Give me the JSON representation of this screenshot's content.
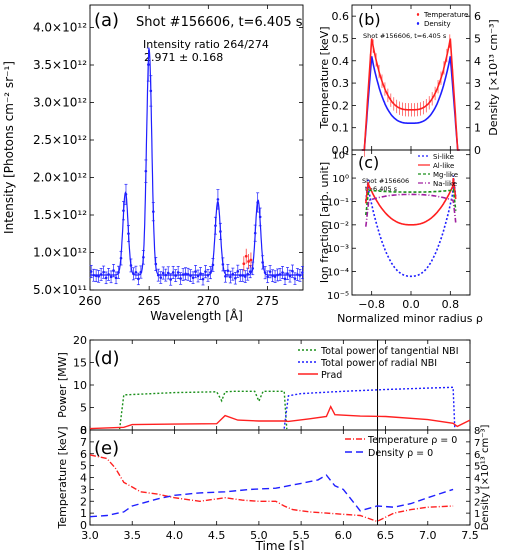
{
  "chart_data": [
    {
      "panel": "(a)",
      "type": "line",
      "title": "Shot #156606, t=6.405 s",
      "annotation": [
        "Intensity ratio 264/274",
        "2.971 ±     0.168"
      ],
      "xlabel": "Wavelength [Å]",
      "ylabel": "Intensity [Photons cm⁻² sr⁻¹]",
      "xlim": [
        260,
        278
      ],
      "ylim": [
        500000000000.0,
        4300000000000.0
      ],
      "xticks": [
        260,
        265,
        270,
        275
      ],
      "xtick_labels": [
        "260",
        "265",
        "270",
        "275"
      ],
      "yticks": [
        500000000000.0,
        1000000000000.0,
        1500000000000.0,
        2000000000000.0,
        2500000000000.0,
        3000000000000.0,
        3500000000000.0,
        4000000000000.0
      ],
      "ytick_labels": [
        "5.0×10¹¹",
        "1.0×10¹²",
        "1.5×10¹²",
        "2.0×10¹²",
        "2.5×10¹²",
        "3.0×10¹²",
        "3.5×10¹²",
        "4.0×10¹²"
      ],
      "peaks": [
        {
          "center": 263.0,
          "amp": 1100000000000.0,
          "width": 0.22
        },
        {
          "center": 265.0,
          "amp": 3000000000000.0,
          "width": 0.22
        },
        {
          "center": 270.8,
          "amp": 980000000000.0,
          "width": 0.22
        },
        {
          "center": 274.2,
          "amp": 1000000000000.0,
          "width": 0.22
        }
      ],
      "baseline": 700000000000.0,
      "series": [
        {
          "name": "",
          "color": "#1f1fff"
        },
        {
          "name": "",
          "color": "#ff2020",
          "x": [
            273.0,
            273.2,
            273.4,
            273.6
          ],
          "y": [
            850000000000.0,
            950000000000.0,
            880000000000.0,
            900000000000.0
          ]
        }
      ]
    },
    {
      "panel": "(b)",
      "type": "line",
      "title": "Shot #156606, t=6.405 s",
      "ylabel": "Temperature [keV]",
      "y2label": "Density [×10¹³ cm⁻³]",
      "xlim": [
        -1.2,
        1.2
      ],
      "ylim": [
        0,
        0.65
      ],
      "yticks": [
        0,
        0.1,
        0.2,
        0.3,
        0.4,
        0.5,
        0.6
      ],
      "ytick_labels": [
        "0.0",
        "0.1",
        "0.2",
        "0.3",
        "0.4",
        "0.5",
        "0.6"
      ],
      "y2lim": [
        0,
        6.5
      ],
      "y2ticks": [
        0,
        1,
        2,
        3,
        4,
        5,
        6
      ],
      "y2tick_labels": [
        "0",
        "1",
        "2",
        "3",
        "4",
        "5",
        "6"
      ],
      "legend": [
        "Temperature",
        "Density"
      ],
      "legend_placement": "top-right",
      "series": [
        {
          "name": "Temperature",
          "color": "#ff2020",
          "edge_value": 0.5,
          "core_value": 0.18
        },
        {
          "name": "Density",
          "color": "#1f1fff",
          "edge_value": 4.2,
          "core_value": 1.2
        }
      ]
    },
    {
      "panel": "(c)",
      "type": "line",
      "title": "Shot #156606\nt=6.405 s",
      "ylabel": "Ion fraction [arb. unit]",
      "xlabel": "Normalized minor radius ρ",
      "xlim": [
        -1.2,
        1.2
      ],
      "xticks": [
        -0.8,
        0.0,
        0.8
      ],
      "xtick_labels": [
        "−0.8",
        "0.0",
        "0.8"
      ],
      "ylim_log": [
        -5,
        1.2
      ],
      "yticks_exp": [
        1,
        0,
        -1,
        -2,
        -3,
        -4,
        -5
      ],
      "ytick_labels": [
        "10¹",
        "10⁰",
        "10⁻¹",
        "10⁻²",
        "10⁻³",
        "10⁻⁴",
        "10⁻⁵"
      ],
      "legend": [
        "Si-like",
        "Al-like",
        "Mg-like",
        "Na-like"
      ],
      "legend_placement": "top-right",
      "series": [
        {
          "name": "Si-like",
          "color": "#1f1fff",
          "dash": "2,2",
          "edge_log": 0.1,
          "core_log": -4.2
        },
        {
          "name": "Al-like",
          "color": "#ff2020",
          "dash": "",
          "edge_log": 0.0,
          "core_log": -2.0
        },
        {
          "name": "Mg-like",
          "color": "#1a8f1a",
          "dash": "3,2",
          "edge_log": -0.5,
          "core_log": -0.6
        },
        {
          "name": "Na-like",
          "color": "#a020a0",
          "dash": "5,2,1,2",
          "edge_log": -1.0,
          "core_log": -0.7
        }
      ]
    },
    {
      "panel": "(d)",
      "type": "line",
      "ylabel": "Power [MW]",
      "xlim": [
        3.0,
        7.5
      ],
      "ylim": [
        0,
        20
      ],
      "yticks": [
        0,
        5,
        10,
        15,
        20
      ],
      "ytick_labels": [
        "0",
        "5",
        "10",
        "15",
        "20"
      ],
      "vline_x": 6.405,
      "legend": [
        "Total power of tangential NBI",
        "Total power of radial NBI",
        "Prad"
      ],
      "legend_placement": "top-right",
      "series": [
        {
          "name": "Total power of tangential NBI",
          "color": "#1a8f1a",
          "x": [
            3.35,
            3.4,
            4.0,
            4.5,
            4.56,
            4.6,
            4.7,
            4.95,
            5.0,
            5.05,
            5.3,
            5.33
          ],
          "y": [
            0.2,
            7.8,
            8.3,
            8.5,
            6.5,
            8.5,
            8.6,
            8.6,
            6.4,
            8.6,
            8.6,
            0.2
          ]
        },
        {
          "name": "Total power of radial NBI",
          "color": "#1f1fff",
          "x": [
            5.3,
            5.35,
            5.5,
            6.0,
            6.5,
            7.0,
            7.3,
            7.32
          ],
          "y": [
            0.3,
            7.6,
            8.1,
            8.6,
            9.0,
            9.3,
            9.5,
            0.3
          ]
        },
        {
          "name": "Prad",
          "color": "#ff2020",
          "x": [
            3.0,
            3.4,
            3.5,
            4.0,
            4.5,
            4.6,
            4.75,
            5.0,
            5.3,
            5.35,
            5.6,
            5.8,
            5.85,
            5.9,
            6.2,
            6.5,
            7.0,
            7.3,
            7.35,
            7.5
          ],
          "y": [
            0.3,
            0.6,
            1.2,
            1.3,
            1.4,
            3.2,
            2.2,
            2.0,
            2.0,
            1.9,
            2.5,
            3.0,
            5.2,
            3.4,
            3.1,
            3.0,
            2.3,
            1.5,
            0.8,
            2.2
          ]
        }
      ]
    },
    {
      "panel": "(e)",
      "type": "line",
      "ylabel": "Temperature [keV]",
      "y2label": "Density [×10¹³ cm⁻³]",
      "xlabel": "Time [s]",
      "xlim": [
        3.0,
        7.5
      ],
      "xticks": [
        3.0,
        3.5,
        4.0,
        4.5,
        5.0,
        5.5,
        6.0,
        6.5,
        7.0,
        7.5
      ],
      "xtick_labels": [
        "3.0",
        "3.5",
        "4.0",
        "4.5",
        "5.0",
        "5.5",
        "6.0",
        "6.5",
        "7.0",
        "7.5"
      ],
      "ylim": [
        0,
        8
      ],
      "yticks": [
        0,
        1,
        2,
        3,
        4,
        5,
        6,
        7,
        8
      ],
      "ytick_labels": [
        "0",
        "1",
        "2",
        "3",
        "4",
        "5",
        "6",
        "7",
        "8"
      ],
      "y2lim": [
        0,
        8
      ],
      "y2ticks": [
        0,
        1,
        2,
        3,
        4,
        5,
        6,
        7,
        8
      ],
      "y2tick_labels": [
        "0",
        "1",
        "2",
        "3",
        "4",
        "5",
        "6",
        "7",
        "8"
      ],
      "vline_x": 6.405,
      "legend": [
        "Temperature ρ = 0",
        "Density  ρ = 0"
      ],
      "legend_placement": "top-right",
      "series": [
        {
          "name": "Temperature ρ = 0",
          "color": "#ff2020",
          "dash": "6,2,1,2",
          "x": [
            3.0,
            3.2,
            3.3,
            3.4,
            3.6,
            3.8,
            4.0,
            4.3,
            4.6,
            4.8,
            5.0,
            5.2,
            5.3,
            5.4,
            5.6,
            5.8,
            6.0,
            6.2,
            6.4,
            6.6,
            6.8,
            7.0,
            7.3
          ],
          "y": [
            5.9,
            5.6,
            4.8,
            3.6,
            2.8,
            2.6,
            2.3,
            2.0,
            2.3,
            2.1,
            2.0,
            2.0,
            1.6,
            1.3,
            1.1,
            1.0,
            0.9,
            0.8,
            0.3,
            1.0,
            1.3,
            1.5,
            1.6
          ]
        },
        {
          "name": "Density  ρ = 0",
          "color": "#1f1fff",
          "dash": "7,4",
          "x": [
            3.0,
            3.2,
            3.4,
            3.5,
            3.8,
            4.0,
            4.3,
            4.6,
            4.9,
            5.2,
            5.5,
            5.7,
            5.8,
            5.9,
            6.0,
            6.2,
            6.4,
            6.6,
            6.8,
            7.0,
            7.3
          ],
          "y": [
            0.7,
            0.8,
            1.1,
            1.6,
            2.2,
            2.5,
            2.7,
            2.8,
            3.0,
            3.1,
            3.5,
            3.8,
            4.2,
            3.3,
            3.0,
            1.2,
            1.6,
            1.5,
            1.8,
            2.3,
            3.0
          ]
        }
      ]
    }
  ]
}
